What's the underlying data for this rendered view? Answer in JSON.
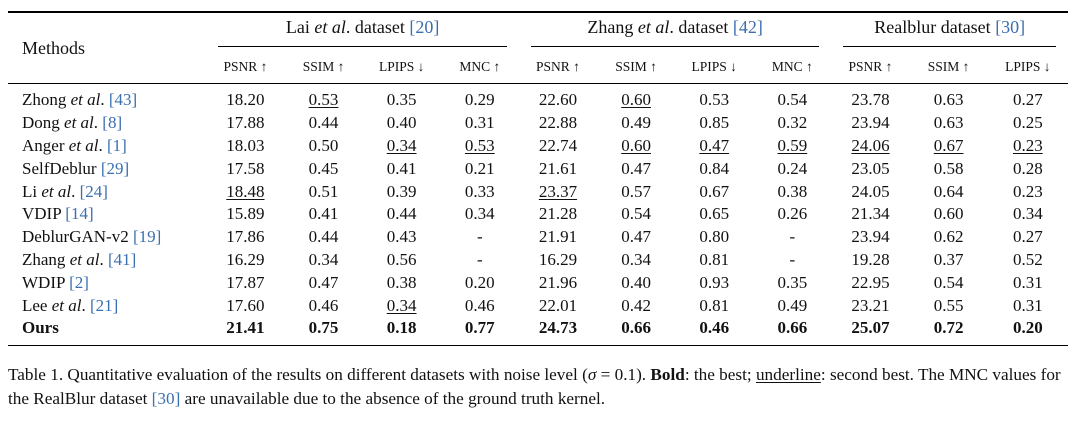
{
  "table": {
    "methods_header": "Methods",
    "groups": [
      {
        "name_pre": "Lai ",
        "name_it": "et al",
        "name_post": ". dataset ",
        "cite": "[20]",
        "metrics": [
          "PSNR ↑",
          "SSIM ↑",
          "LPIPS ↓",
          "MNC ↑"
        ]
      },
      {
        "name_pre": "Zhang ",
        "name_it": "et al",
        "name_post": ". dataset ",
        "cite": "[42]",
        "metrics": [
          "PSNR ↑",
          "SSIM ↑",
          "LPIPS ↓",
          "MNC ↑"
        ]
      },
      {
        "name_pre": "Realblur dataset ",
        "name_it": "",
        "name_post": "",
        "cite": "[30]",
        "metrics": [
          "PSNR ↑",
          "SSIM ↑",
          "LPIPS ↓"
        ]
      }
    ],
    "rows": [
      {
        "name": "Zhong",
        "etal": true,
        "cite": "[43]",
        "values": [
          "18.20",
          "0.53",
          "0.35",
          "0.29",
          "22.60",
          "0.60",
          "0.53",
          "0.54",
          "23.78",
          "0.63",
          "0.27"
        ],
        "underline": [
          1,
          5
        ],
        "bold": []
      },
      {
        "name": "Dong",
        "etal": true,
        "cite": "[8]",
        "values": [
          "17.88",
          "0.44",
          "0.40",
          "0.31",
          "22.88",
          "0.49",
          "0.85",
          "0.32",
          "23.94",
          "0.63",
          "0.25"
        ],
        "underline": [],
        "bold": []
      },
      {
        "name": "Anger",
        "etal": true,
        "cite": "[1]",
        "values": [
          "18.03",
          "0.50",
          "0.34",
          "0.53",
          "22.74",
          "0.60",
          "0.47",
          "0.59",
          "24.06",
          "0.67",
          "0.23"
        ],
        "underline": [
          2,
          3,
          5,
          6,
          7,
          8,
          9,
          10
        ],
        "bold": []
      },
      {
        "name": "SelfDeblur",
        "etal": false,
        "cite": "[29]",
        "values": [
          "17.58",
          "0.45",
          "0.41",
          "0.21",
          "21.61",
          "0.47",
          "0.84",
          "0.24",
          "23.05",
          "0.58",
          "0.28"
        ],
        "underline": [],
        "bold": []
      },
      {
        "name": "Li",
        "etal": true,
        "cite": "[24]",
        "values": [
          "18.48",
          "0.51",
          "0.39",
          "0.33",
          "23.37",
          "0.57",
          "0.67",
          "0.38",
          "24.05",
          "0.64",
          "0.23"
        ],
        "underline": [
          0,
          4
        ],
        "bold": []
      },
      {
        "name": "VDIP",
        "etal": false,
        "cite": "[14]",
        "values": [
          "15.89",
          "0.41",
          "0.44",
          "0.34",
          "21.28",
          "0.54",
          "0.65",
          "0.26",
          "21.34",
          "0.60",
          "0.34"
        ],
        "underline": [],
        "bold": []
      },
      {
        "name": "DeblurGAN-v2 ",
        "etal": false,
        "cite": "[19]",
        "values": [
          "17.86",
          "0.44",
          "0.43",
          "-",
          "21.91",
          "0.47",
          "0.80",
          "-",
          "23.94",
          "0.62",
          "0.27"
        ],
        "underline": [],
        "bold": []
      },
      {
        "name": "Zhang",
        "etal": true,
        "cite": "[41]",
        "values": [
          "16.29",
          "0.34",
          "0.56",
          "-",
          "16.29",
          "0.34",
          "0.81",
          "-",
          "19.28",
          "0.37",
          "0.52"
        ],
        "underline": [],
        "bold": []
      },
      {
        "name": "WDIP",
        "etal": false,
        "cite": "[2]",
        "values": [
          "17.87",
          "0.47",
          "0.38",
          "0.20",
          "21.96",
          "0.40",
          "0.93",
          "0.35",
          "22.95",
          "0.54",
          "0.31"
        ],
        "underline": [],
        "bold": []
      },
      {
        "name": "Lee",
        "etal": true,
        "cite": "[21]",
        "values": [
          "17.60",
          "0.46",
          "0.34",
          "0.46",
          "22.01",
          "0.42",
          "0.81",
          "0.49",
          "23.21",
          "0.55",
          "0.31"
        ],
        "underline": [
          2
        ],
        "bold": []
      },
      {
        "name": "Ours",
        "etal": false,
        "cite": "",
        "values": [
          "21.41",
          "0.75",
          "0.18",
          "0.77",
          "24.73",
          "0.66",
          "0.46",
          "0.66",
          "25.07",
          "0.72",
          "0.20"
        ],
        "underline": [],
        "bold": [
          0,
          1,
          2,
          3,
          4,
          5,
          6,
          7,
          8,
          9,
          10
        ],
        "name_bold": true
      }
    ]
  },
  "caption": {
    "p1": "Table 1. Quantitative evaluation of the results on different datasets with noise level (",
    "sigma": "σ",
    "p2": " = 0.1). ",
    "bold_word": "Bold",
    "p3": ": the best; ",
    "underline_word": "underline",
    "p4": ": second best. The MNC values for the RealBlur dataset ",
    "cite": "[30]",
    "p5": " are unavailable due to the absence of the ground truth kernel."
  }
}
